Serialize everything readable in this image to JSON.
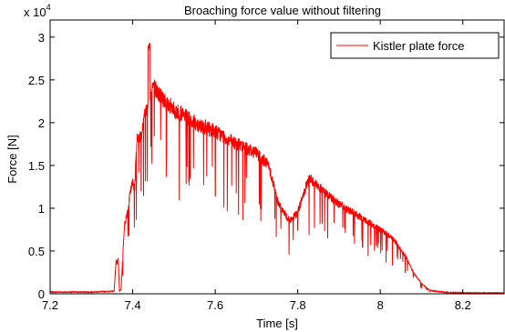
{
  "chart_data": {
    "type": "line",
    "title": "Broaching force value without filtering",
    "xlabel": "Time [s]",
    "ylabel": "Force [N]",
    "y_multiplier_label": "x 10",
    "y_multiplier_exponent": "4",
    "xlim": [
      7.2,
      8.3
    ],
    "ylim": [
      0,
      32000
    ],
    "x_ticks": [
      7.2,
      7.4,
      7.6,
      7.8,
      8.0,
      8.2
    ],
    "x_tick_labels": [
      "7.2",
      "7.4",
      "7.6",
      "7.8",
      "8",
      "8.2"
    ],
    "y_ticks": [
      0,
      5000,
      10000,
      15000,
      20000,
      25000,
      30000
    ],
    "y_tick_labels": [
      "0",
      "0.5",
      "1",
      "1.5",
      "2",
      "2.5",
      "3"
    ],
    "grid": false,
    "legend_position": "top-right",
    "series": [
      {
        "name": "Kistler plate force",
        "color": "#ff0000",
        "x": [
          7.2,
          7.3,
          7.355,
          7.36,
          7.362,
          7.365,
          7.368,
          7.372,
          7.38,
          7.385,
          7.39,
          7.395,
          7.4,
          7.405,
          7.41,
          7.42,
          7.43,
          7.44,
          7.45,
          7.46,
          7.48,
          7.5,
          7.55,
          7.6,
          7.65,
          7.7,
          7.73,
          7.75,
          7.76,
          7.78,
          7.8,
          7.82,
          7.83,
          7.85,
          7.9,
          7.95,
          8.0,
          8.03,
          8.06,
          8.08,
          8.1,
          8.12,
          8.15,
          8.2,
          8.3
        ],
        "y": [
          200,
          200,
          300,
          4000,
          3500,
          4200,
          300,
          500,
          8000,
          9000,
          10500,
          12000,
          13000,
          12500,
          18000,
          18500,
          21000,
          23000,
          24500,
          23500,
          22500,
          21500,
          20000,
          19000,
          17500,
          16500,
          15000,
          11000,
          10000,
          8500,
          9500,
          12500,
          13500,
          12500,
          10500,
          9000,
          7500,
          6500,
          4500,
          2500,
          1200,
          400,
          200,
          100,
          100
        ]
      }
    ]
  }
}
